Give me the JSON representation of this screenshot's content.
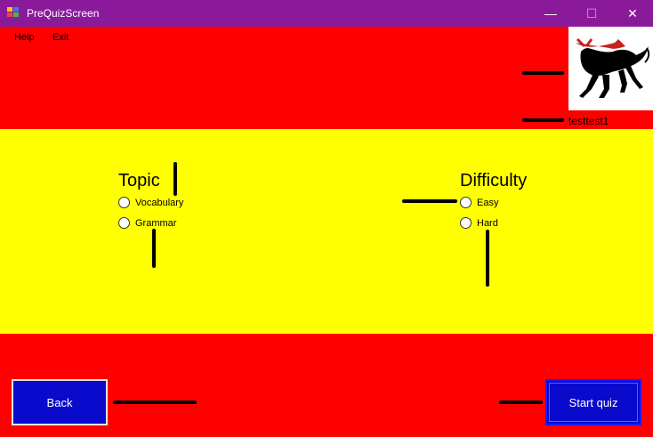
{
  "window": {
    "title": "PreQuizScreen",
    "controls": {
      "minimize": "—",
      "maximize": "☐",
      "close": "✕"
    }
  },
  "menu": {
    "help": "Help",
    "exit": "Exit"
  },
  "user": {
    "name": "testtest1"
  },
  "logo": {
    "icon": "bull-icon"
  },
  "topic": {
    "title": "Topic",
    "options": [
      "Vocabulary",
      "Grammar"
    ]
  },
  "difficulty": {
    "title": "Difficulty",
    "options": [
      "Easy",
      "Hard"
    ]
  },
  "buttons": {
    "back": "Back",
    "start": "Start quiz"
  },
  "colors": {
    "red": "#ff0000",
    "yellow": "#ffff00",
    "titlebar": "#8b1a9b",
    "button": "#0a0acc"
  }
}
